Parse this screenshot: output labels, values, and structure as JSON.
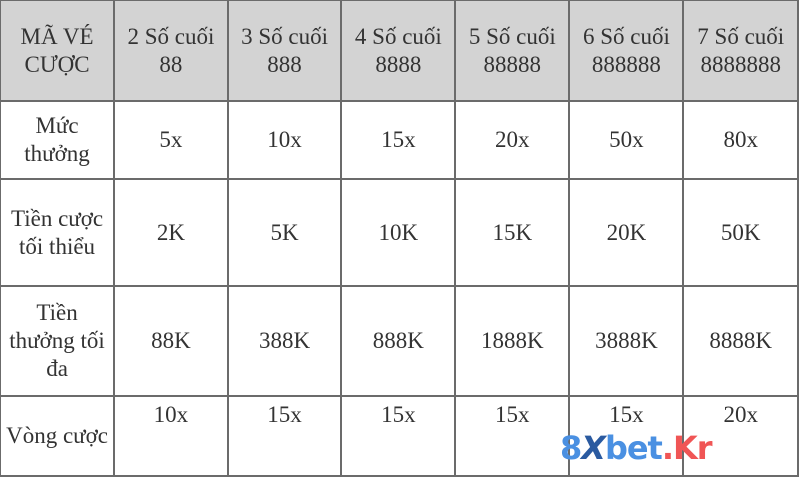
{
  "headers": [
    "MÃ VÉ CƯỢC",
    "2 Số cuối 88",
    "3 Số cuối 888",
    "4 Số cuối 8888",
    "5 Số cuối 88888",
    "6 Số cuối 888888",
    "7 Số cuối 8888888"
  ],
  "rows": [
    {
      "label": "Mức thưởng",
      "values": [
        "5x",
        "10x",
        "15x",
        "20x",
        "50x",
        "80x"
      ]
    },
    {
      "label": "Tiền cược tối thiểu",
      "values": [
        "2K",
        "5K",
        "10K",
        "15K",
        "20K",
        "50K"
      ]
    },
    {
      "label": "Tiền thưởng tối đa",
      "values": [
        "88K",
        "388K",
        "888K",
        "1888K",
        "3888K",
        "8888K"
      ]
    },
    {
      "label": "Vòng cược",
      "values": [
        "10x",
        "15x",
        "15x",
        "15x",
        "15x",
        "20x"
      ]
    }
  ],
  "watermark": {
    "part1": "8",
    "part2": "X",
    "part3": "bet",
    "part4": ".Kr"
  }
}
